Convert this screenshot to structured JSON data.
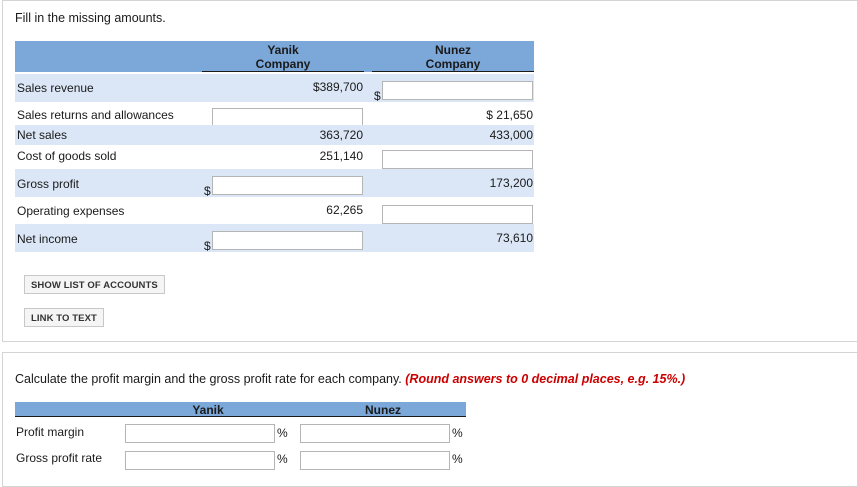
{
  "section1": {
    "instruction": "Fill in the missing amounts.",
    "columns": {
      "yanik": [
        "Yanik",
        "Company"
      ],
      "nunez": [
        "Nunez",
        "Company"
      ]
    },
    "rows": {
      "sales_revenue": {
        "label": "Sales revenue",
        "yanik": "$389,700",
        "nunez_prefix": "$"
      },
      "returns": {
        "label": "Sales returns and allowances",
        "nunez": "$ 21,650"
      },
      "net_sales": {
        "label": "Net sales",
        "yanik": "363,720",
        "nunez": "433,000"
      },
      "cogs": {
        "label": "Cost of goods sold",
        "yanik": "251,140"
      },
      "gross_profit": {
        "label": "Gross profit",
        "yanik_prefix": "$",
        "nunez": "173,200"
      },
      "opex": {
        "label": "Operating expenses",
        "yanik": "62,265"
      },
      "net_income": {
        "label": "Net income",
        "yanik_prefix": "$",
        "nunez": "73,610"
      }
    },
    "buttons": {
      "show_accounts": "SHOW LIST OF ACCOUNTS",
      "link_text": "LINK TO TEXT"
    }
  },
  "section2": {
    "question": "Calculate the profit margin and the gross profit rate for each company.",
    "note": "(Round answers to 0 decimal places, e.g. 15%.)",
    "columns": {
      "yanik": "Yanik",
      "nunez": "Nunez"
    },
    "rows": {
      "profit_margin": {
        "label": "Profit margin",
        "unit": "%"
      },
      "gross_profit_rate": {
        "label": "Gross profit rate",
        "unit": "%"
      }
    }
  }
}
